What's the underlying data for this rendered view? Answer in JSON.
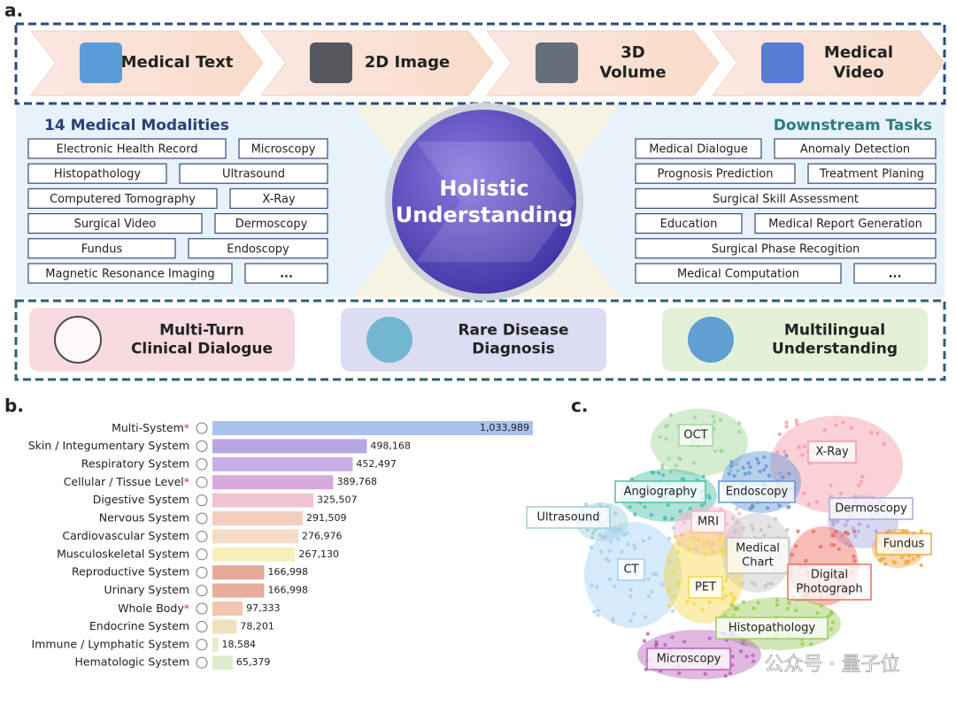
{
  "panel_a": {
    "label": "a.",
    "inputs": [
      {
        "lines": [
          "Medical Text"
        ]
      },
      {
        "lines": [
          "2D Image"
        ]
      },
      {
        "lines": [
          "3D",
          "Volume"
        ]
      },
      {
        "lines": [
          "Medical",
          "Video"
        ]
      }
    ],
    "modalities_title": "14 Medical Modalities",
    "modalities": [
      "Electronic Health Record",
      "Microscopy",
      "Histopathology",
      "Ultrasound",
      "Computered Tomography",
      "X-Ray",
      "Surgical Video",
      "Dermoscopy",
      "Fundus",
      "Endoscopy",
      "Magnetic Resonance Imaging",
      "..."
    ],
    "center": [
      "Holistic",
      "Understanding"
    ],
    "tasks_title": "Downstream Tasks",
    "tasks": [
      "Medical Dialogue",
      "Anomaly Detection",
      "Prognosis Prediction",
      "Treatment Planing",
      "Surgical Skill Assessment",
      "Education",
      "Medical Report Generation",
      "Surgical Phase Recogition",
      "Medical Computation",
      "..."
    ],
    "capabilities": [
      {
        "lines": [
          "Multi-Turn",
          "Clinical Dialogue"
        ]
      },
      {
        "lines": [
          "Rare Disease",
          "Diagnosis"
        ]
      },
      {
        "lines": [
          "Multilingual",
          "Understanding"
        ]
      }
    ]
  },
  "chart_data": {
    "type": "bar",
    "orientation": "horizontal",
    "label": "b.",
    "categories": [
      "Multi-System*",
      "Skin / Integumentary System",
      "Respiratory System",
      "Cellular / Tissue Level*",
      "Digestive System",
      "Nervous System",
      "Cardiovascular System",
      "Musculoskeletal System",
      "Reproductive System",
      "Urinary System",
      "Whole Body*",
      "Endocrine System",
      "Immune / Lymphatic System",
      "Hematologic System"
    ],
    "values": [
      1033989,
      498168,
      452497,
      389768,
      325507,
      291509,
      276976,
      267130,
      166998,
      166998,
      97333,
      78201,
      18584,
      65379
    ],
    "value_labels": [
      "1,033,989",
      "498,168",
      "452,497",
      "389,768",
      "325,507",
      "291,509",
      "276,976",
      "267,130",
      "166,998",
      "166,998",
      "97,333",
      "78,201",
      "18,584",
      "65,379"
    ],
    "colors": [
      "#a9c1ec",
      "#b8a6e4",
      "#c9aee6",
      "#d7a9dc",
      "#efc3cf",
      "#f4cfc0",
      "#f5dcc6",
      "#f7f0bd",
      "#e7a899",
      "#e8ad9c",
      "#f2c5b2",
      "#eee2c0",
      "#e4ecc6",
      "#dfeccc"
    ]
  },
  "panel_c": {
    "label": "c.",
    "clusters": [
      {
        "lines": [
          "OCT"
        ],
        "color": "#9fd69a"
      },
      {
        "lines": [
          "X-Ray"
        ],
        "color": "#f29aa6"
      },
      {
        "lines": [
          "Angiography"
        ],
        "color": "#4cbfa8"
      },
      {
        "lines": [
          "Endoscopy"
        ],
        "color": "#5f95d6"
      },
      {
        "lines": [
          "Ultrasound"
        ],
        "color": "#9fcfd9"
      },
      {
        "lines": [
          "Dermoscopy"
        ],
        "color": "#a9a8dd"
      },
      {
        "lines": [
          "MRI"
        ],
        "color": "#f4b3cc"
      },
      {
        "lines": [
          "Fundus"
        ],
        "color": "#f2a63c"
      },
      {
        "lines": [
          "Medical",
          "Chart"
        ],
        "color": "#c4c4c4"
      },
      {
        "lines": [
          "CT"
        ],
        "color": "#a3d0f2"
      },
      {
        "lines": [
          "Digital",
          "Photograph"
        ],
        "color": "#ee6a5a"
      },
      {
        "lines": [
          "PET"
        ],
        "color": "#f3d84a"
      },
      {
        "lines": [
          "Histopathology"
        ],
        "color": "#98cc58"
      },
      {
        "lines": [
          "Microscopy"
        ],
        "color": "#bb62bb"
      }
    ]
  },
  "watermark": "公众号 · 量子位"
}
